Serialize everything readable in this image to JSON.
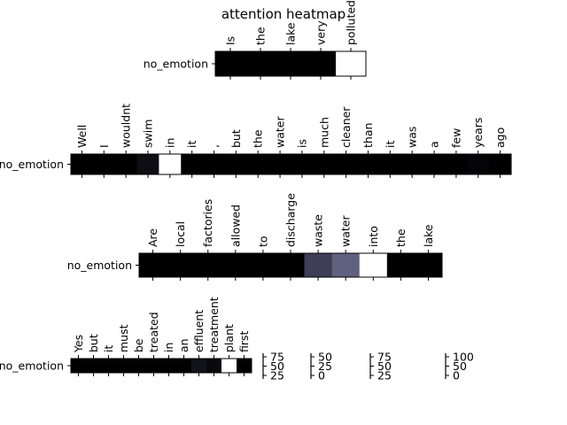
{
  "chart_data": {
    "type": "heatmap",
    "title": "attention heatmap",
    "colormap": "bone",
    "panels": [
      {
        "row_label": "no_emotion",
        "tokens": [
          "Is",
          "the",
          "lake",
          "very",
          "polluted"
        ],
        "values": [
          0,
          0,
          0,
          0,
          1
        ]
      },
      {
        "row_label": "no_emotion",
        "tokens": [
          "Well",
          "I",
          "wouldnt",
          "swim",
          "in",
          "it",
          ",",
          "but",
          "the",
          "water",
          "is",
          "much",
          "cleaner",
          "than",
          "it",
          "was",
          "a",
          "few",
          "years",
          "ago"
        ],
        "values": [
          0,
          0,
          0,
          0.06,
          1,
          0,
          0,
          0,
          0,
          0,
          0,
          0,
          0,
          0,
          0,
          0,
          0,
          0,
          0.02,
          0
        ]
      },
      {
        "row_label": "no_emotion",
        "tokens": [
          "Are",
          "local",
          "factories",
          "allowed",
          "to",
          "discharge",
          "waste",
          "water",
          "into",
          "the",
          "lake"
        ],
        "values": [
          0,
          0,
          0,
          0,
          0,
          0,
          0.28,
          0.42,
          1,
          0,
          0
        ]
      },
      {
        "row_label": "no_emotion",
        "tokens": [
          "Yes",
          "but",
          "it",
          "must",
          "be",
          "treated",
          "in",
          "an",
          "effluent",
          "treatment",
          "plant",
          "first"
        ],
        "values": [
          0,
          0,
          0,
          0,
          0,
          0,
          0,
          0,
          0.08,
          0.04,
          1,
          0
        ]
      }
    ],
    "colorbars": [
      {
        "ticks": [
          "75",
          "50",
          "25"
        ]
      },
      {
        "ticks": [
          "50",
          "25",
          "0"
        ]
      },
      {
        "ticks": [
          "75",
          "50",
          "25"
        ]
      },
      {
        "ticks": [
          "100",
          "50",
          "0"
        ]
      }
    ]
  }
}
